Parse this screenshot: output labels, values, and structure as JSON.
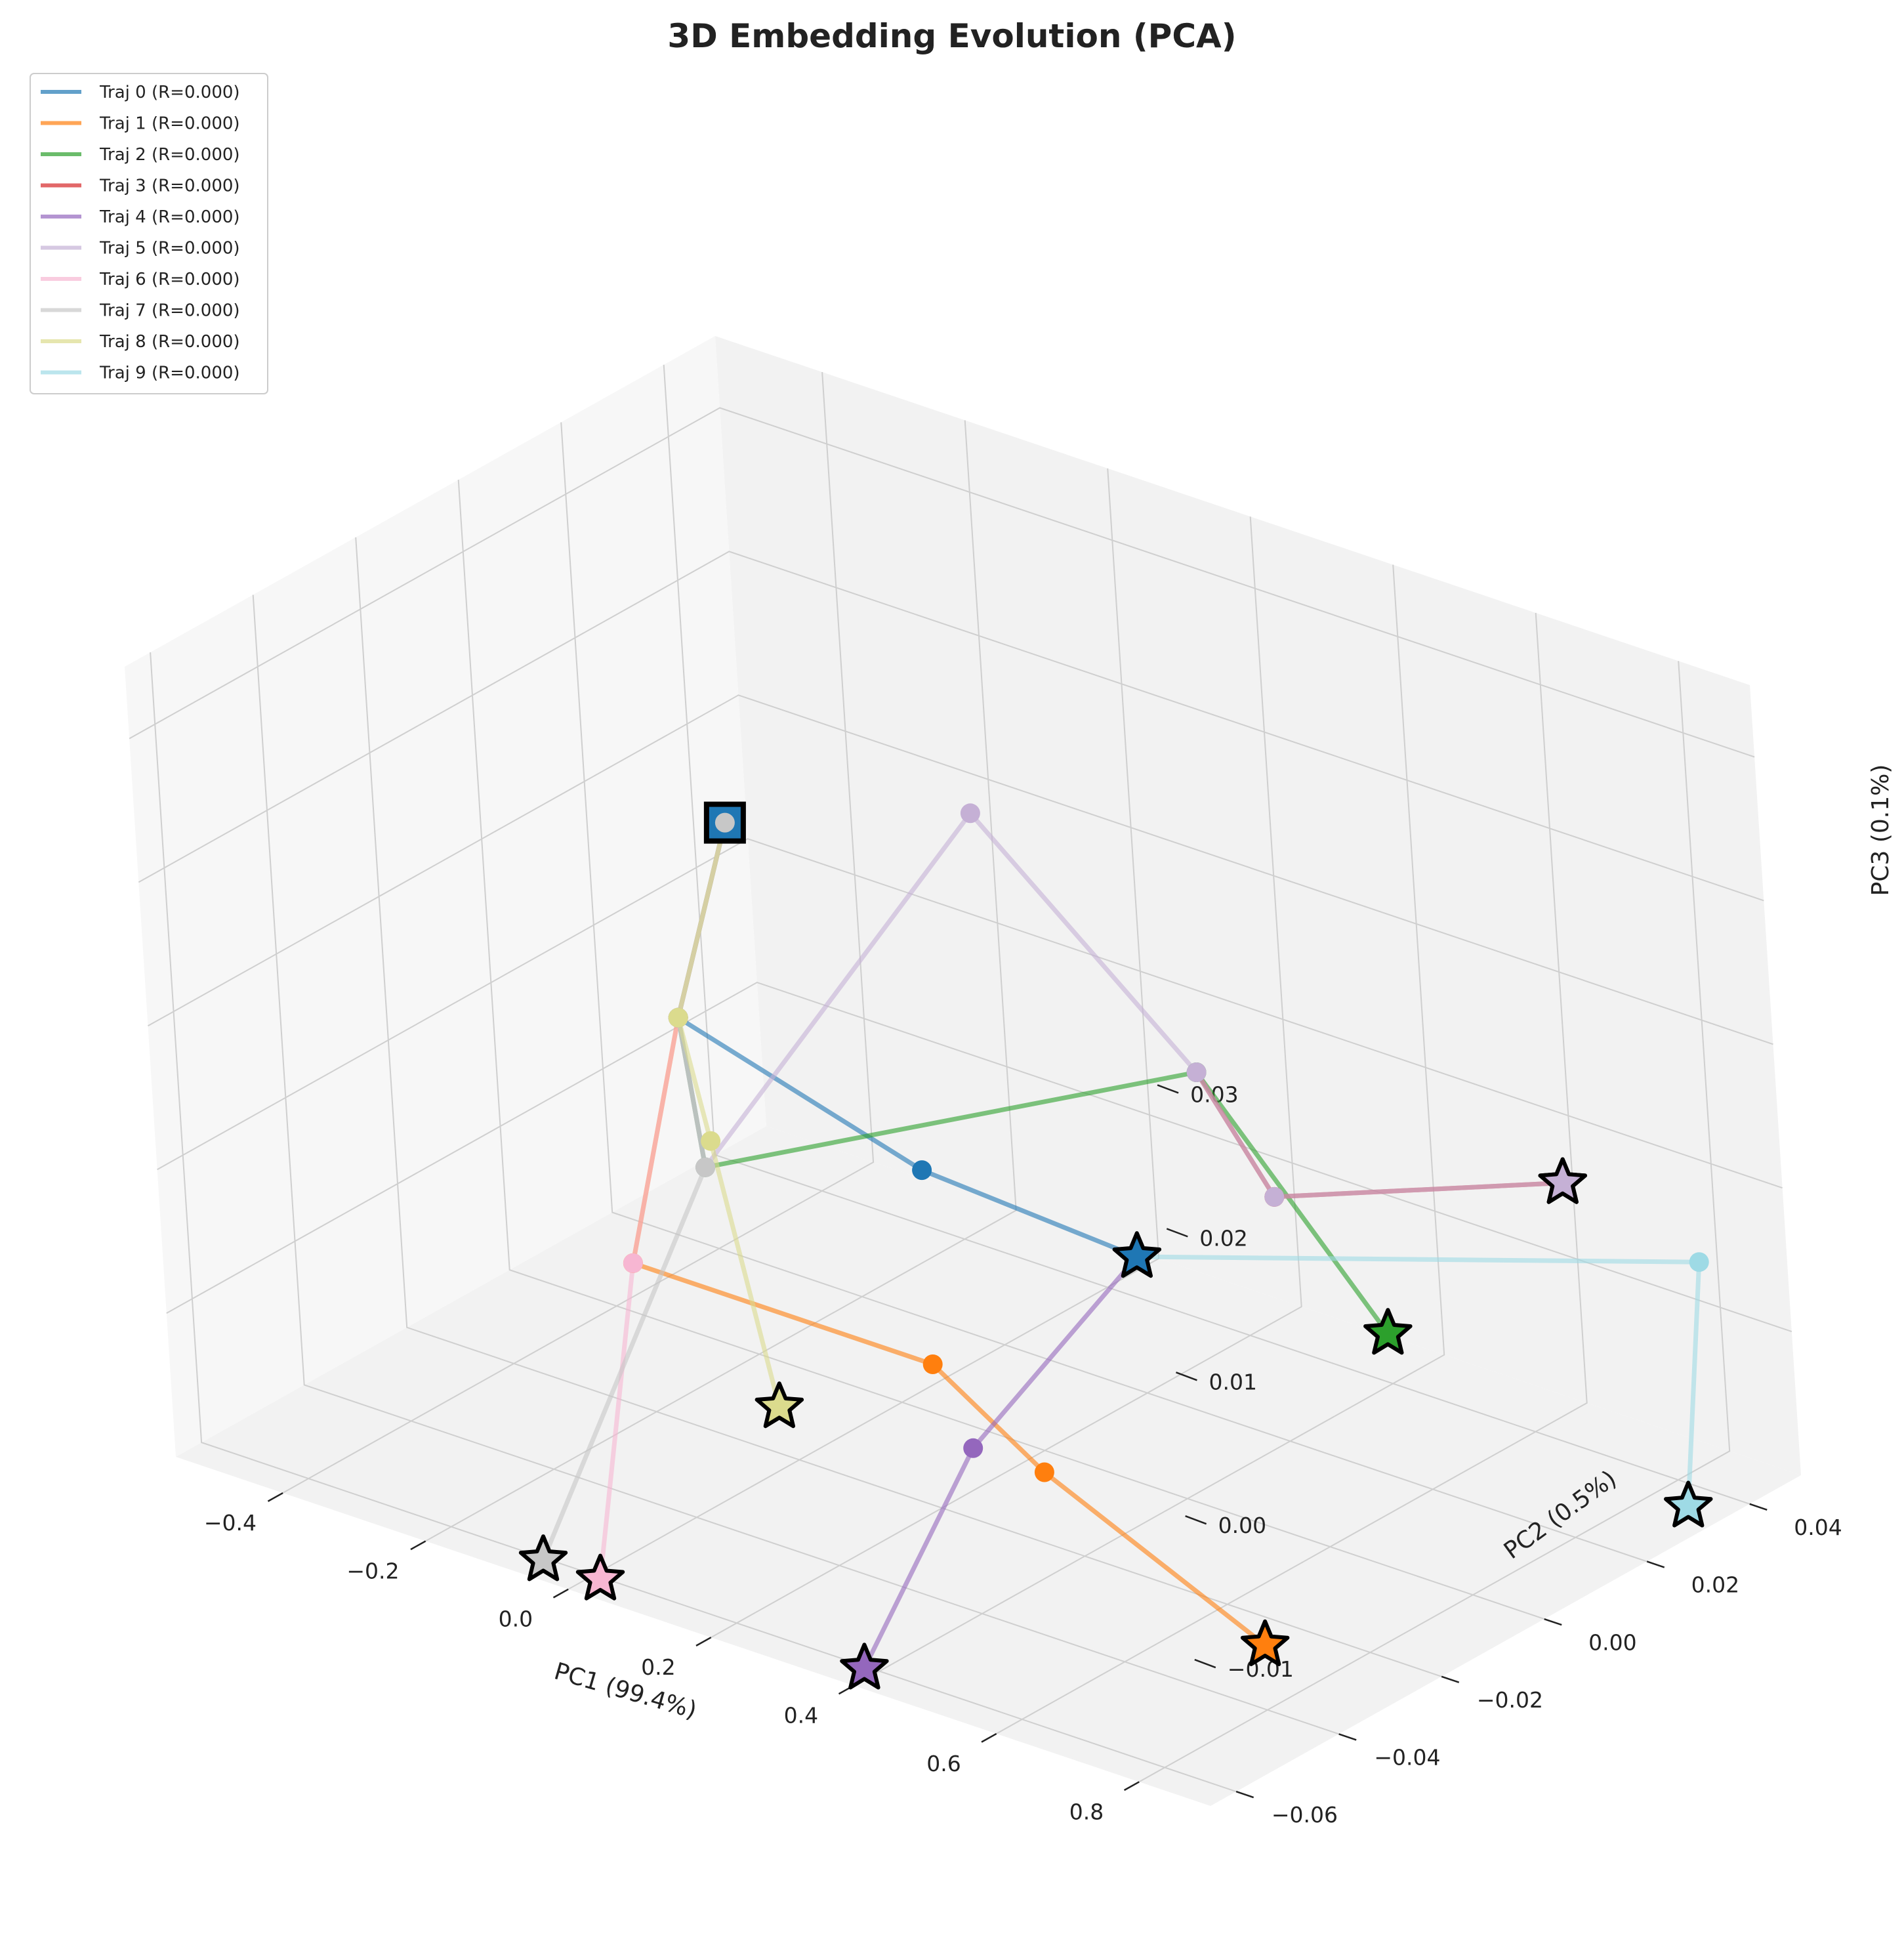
{
  "chart_data": {
    "type": "scatter",
    "subtype": "3d-trajectory",
    "title": "3D Embedding Evolution (PCA)",
    "xlabel": "PC1 (99.4%)",
    "ylabel": "PC2 (0.5%)",
    "zlabel": "PC3 (0.1%)",
    "xlim": [
      -0.55,
      0.9
    ],
    "ylim": [
      -0.065,
      0.05
    ],
    "zlim": [
      -0.02,
      0.035
    ],
    "xticks": [
      -0.4,
      -0.2,
      0.0,
      0.2,
      0.4,
      0.6,
      0.8
    ],
    "xtick_labels": [
      "−0.4",
      "−0.2",
      "0.0",
      "0.2",
      "0.4",
      "0.6",
      "0.8"
    ],
    "yticks": [
      -0.06,
      -0.04,
      -0.02,
      0.0,
      0.02,
      0.04
    ],
    "ytick_labels": [
      "−0.06",
      "−0.04",
      "−0.02",
      "0.00",
      "0.02",
      "0.04"
    ],
    "zticks": [
      -0.01,
      0.0,
      0.01,
      0.02,
      0.03
    ],
    "ztick_labels": [
      "−0.01",
      "0.00",
      "0.01",
      "0.02",
      "0.03"
    ],
    "grid": true,
    "legend_position": "top-left",
    "start": {
      "x": -0.2,
      "y": 0.0,
      "z": 0.017,
      "marker": "square"
    },
    "series": [
      {
        "name": "Traj 0 (R=0.000)",
        "color": "#1f77b4",
        "points": [
          [
            -0.2,
            0.0,
            0.017
          ],
          [
            -0.285,
            0.0,
            0.002
          ],
          [
            0.05,
            0.0,
            -0.003
          ],
          [
            0.35,
            0.0,
            -0.004
          ]
        ]
      },
      {
        "name": "Traj 1 (R=0.000)",
        "color": "#ff7f0e",
        "points": [
          [
            -0.2,
            0.0,
            0.017
          ],
          [
            -0.285,
            0.0,
            0.002
          ],
          [
            -0.22,
            -0.02,
            -0.01
          ],
          [
            0.2,
            -0.02,
            -0.01
          ],
          [
            0.35,
            -0.02,
            -0.015
          ],
          [
            0.65,
            -0.02,
            -0.022
          ]
        ]
      },
      {
        "name": "Traj 2 (R=0.000)",
        "color": "#2ca02c",
        "points": [
          [
            -0.2,
            0.0,
            0.017
          ],
          [
            -0.285,
            0.0,
            0.002
          ],
          [
            -0.26,
            0.0,
            -0.008
          ],
          [
            0.3,
            0.02,
            0.004
          ],
          [
            0.55,
            0.02,
            -0.01
          ]
        ]
      },
      {
        "name": "Traj 3 (R=0.000)",
        "color": "#d62728",
        "points": [
          [
            0.3,
            0.02,
            0.004
          ],
          [
            0.4,
            0.02,
            -0.003
          ],
          [
            0.7,
            0.035,
            0.0
          ]
        ]
      },
      {
        "name": "Traj 4 (R=0.000)",
        "color": "#9467bd",
        "points": [
          [
            0.35,
            0.0,
            -0.004
          ],
          [
            0.25,
            -0.02,
            -0.015
          ],
          [
            0.15,
            -0.03,
            -0.03
          ]
        ]
      },
      {
        "name": "Traj 5 (R=0.000)",
        "color": "#c5b0d5",
        "points": [
          [
            -0.2,
            0.0,
            0.017
          ],
          [
            -0.285,
            0.0,
            0.002
          ],
          [
            -0.26,
            0.0,
            -0.008
          ],
          [
            0.0,
            0.02,
            0.017
          ],
          [
            0.3,
            0.02,
            0.004
          ],
          [
            0.4,
            0.02,
            -0.003
          ],
          [
            0.7,
            0.035,
            0.0
          ]
        ]
      },
      {
        "name": "Traj 6 (R=0.000)",
        "color": "#f7b6d2",
        "points": [
          [
            -0.2,
            0.0,
            0.017
          ],
          [
            -0.285,
            0.0,
            0.002
          ],
          [
            -0.22,
            -0.02,
            -0.01
          ],
          [
            -0.22,
            -0.03,
            -0.03
          ]
        ]
      },
      {
        "name": "Traj 7 (R=0.000)",
        "color": "#c7c7c7",
        "points": [
          [
            -0.2,
            0.0,
            0.017
          ],
          [
            -0.285,
            0.0,
            0.002
          ],
          [
            -0.26,
            0.0,
            -0.008
          ],
          [
            -0.3,
            -0.03,
            -0.03
          ]
        ]
      },
      {
        "name": "Traj 8 (R=0.000)",
        "color": "#dbdb8d",
        "points": [
          [
            -0.2,
            0.0,
            0.017
          ],
          [
            -0.285,
            0.0,
            0.002
          ],
          [
            -0.25,
            0.0,
            -0.006
          ],
          [
            -0.1,
            -0.01,
            -0.02
          ]
        ]
      },
      {
        "name": "Traj 9 (R=0.000)",
        "color": "#9edae5",
        "points": [
          [
            0.35,
            0.0,
            -0.004
          ],
          [
            0.85,
            0.04,
            -0.004
          ],
          [
            0.85,
            0.035,
            -0.02
          ]
        ]
      }
    ]
  }
}
